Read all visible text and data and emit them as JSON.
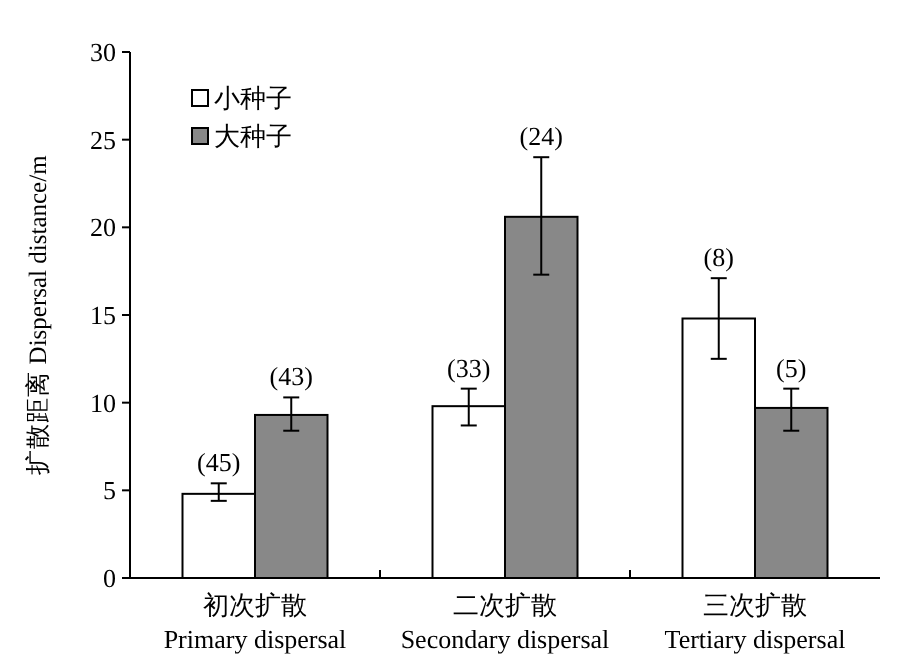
{
  "chart_data": {
    "type": "bar",
    "ylabel": "扩散距离 Dispersal distance/m",
    "categories": [
      "初次扩散\nPrimary dispersal",
      "二次扩散\nSecondary dispersal",
      "三次扩散\nTertiary dispersal"
    ],
    "series": [
      {
        "name": "小种子",
        "color": "#ffffff",
        "values": [
          4.8,
          9.8,
          14.8
        ],
        "errors": [
          [
            4.4,
            5.4
          ],
          [
            8.7,
            10.8
          ],
          [
            12.5,
            17.1
          ]
        ]
      },
      {
        "name": "大种子",
        "color": "#888888",
        "values": [
          9.3,
          20.6,
          9.7
        ],
        "errors": [
          [
            8.4,
            10.3
          ],
          [
            17.3,
            24.0
          ],
          [
            8.4,
            10.8
          ]
        ]
      }
    ],
    "annotations": [
      "(45)",
      "(33)",
      "(8)",
      "(43)",
      "(24)",
      "(5)"
    ],
    "ylim": [
      0,
      30
    ],
    "yticks": [
      0,
      5,
      10,
      15,
      20,
      25,
      30
    ],
    "legend": "top left",
    "grid": false
  }
}
